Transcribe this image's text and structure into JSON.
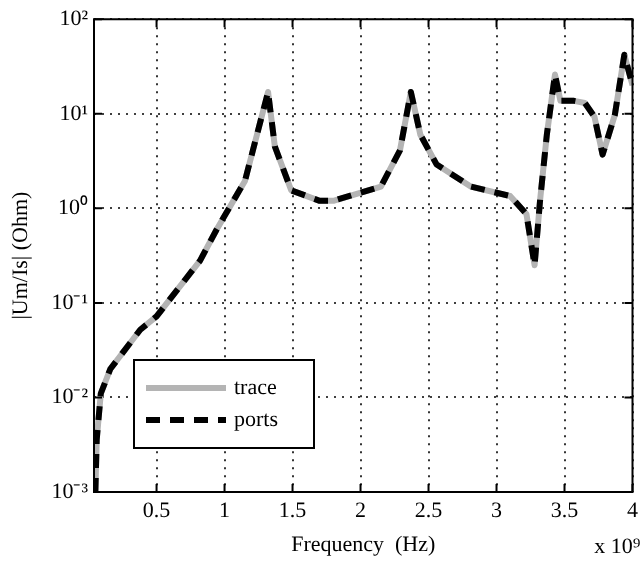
{
  "chart_data": {
    "type": "line",
    "xlabel": "Frequency  (Hz)",
    "ylabel": "|Um/Is| (Ohm)",
    "x": [
      0.05,
      0.06,
      0.09,
      0.16,
      0.38,
      0.5,
      0.82,
      0.94,
      1.15,
      1.32,
      1.37,
      1.49,
      1.7,
      1.8,
      2.15,
      2.29,
      2.37,
      2.44,
      2.56,
      2.81,
      3.1,
      3.22,
      3.28,
      3.32,
      3.37,
      3.43,
      3.47,
      3.57,
      3.65,
      3.72,
      3.78,
      3.87,
      3.94,
      4.0
    ],
    "series": [
      {
        "name": "trace",
        "color": "#b4b4b4",
        "line_style": "solid",
        "values": [
          0.001,
          0.0036,
          0.011,
          0.02,
          0.052,
          0.072,
          0.28,
          0.59,
          1.95,
          17,
          4.5,
          1.55,
          1.2,
          1.2,
          1.7,
          4.1,
          17,
          6,
          2.9,
          1.7,
          1.35,
          0.87,
          0.25,
          1.2,
          6,
          26,
          13.7,
          13.7,
          13,
          9.3,
          3.7,
          9.7,
          42,
          20
        ]
      },
      {
        "name": "ports",
        "color": "#000000",
        "line_style": "dashed",
        "values": [
          0.001,
          0.0036,
          0.011,
          0.02,
          0.052,
          0.072,
          0.28,
          0.59,
          1.95,
          17,
          4.5,
          1.55,
          1.2,
          1.2,
          1.7,
          4.1,
          17,
          6,
          2.9,
          1.7,
          1.35,
          0.87,
          0.25,
          1.2,
          6,
          26,
          13.7,
          13.7,
          13,
          9.3,
          3.7,
          9.7,
          42,
          20
        ]
      }
    ],
    "log": "y",
    "xlim": [
      0.04,
      4
    ],
    "xticks": [
      0.5,
      1,
      1.5,
      2,
      2.5,
      3,
      3.5,
      4
    ],
    "ylim": [
      0.001,
      100
    ],
    "yticks": [
      {
        "value": 0.001,
        "label": "10⁻³"
      },
      {
        "value": 0.01,
        "label": "10⁻²"
      },
      {
        "value": 0.1,
        "label": "10⁻¹"
      },
      {
        "value": 1,
        "label": "10⁰"
      },
      {
        "value": 10,
        "label": "10¹"
      },
      {
        "value": 100,
        "label": "10²"
      }
    ],
    "grid": true,
    "legend": "bottom left",
    "marker": "none",
    "annotations": [
      "x 10⁹"
    ]
  }
}
